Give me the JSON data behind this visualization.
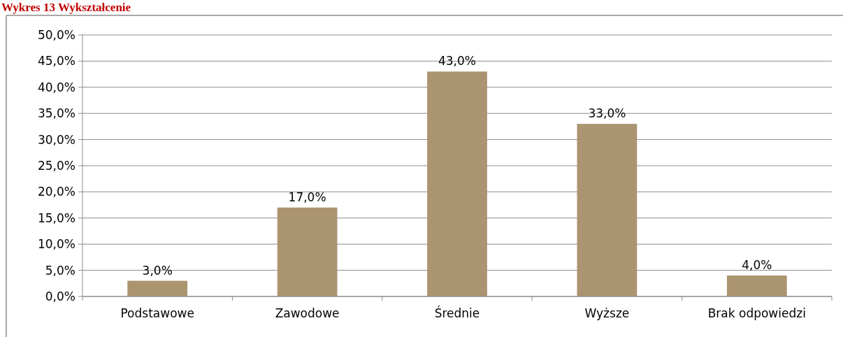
{
  "chart_data": {
    "type": "bar",
    "title": "Wykres 13 Wykształcenie",
    "categories": [
      "Podstawowe",
      "Zawodowe",
      "Średnie",
      "Wyższe",
      "Brak odpowiedzi"
    ],
    "values": [
      3.0,
      17.0,
      43.0,
      33.0,
      4.0
    ],
    "color": "#ab9470",
    "ylim": [
      0,
      50
    ],
    "yticks": [
      {
        "value": 0,
        "label": "0,0%"
      },
      {
        "value": 5,
        "label": "5,0%"
      },
      {
        "value": 10,
        "label": "10,0%"
      },
      {
        "value": 15,
        "label": "15,0%"
      },
      {
        "value": 20,
        "label": "20,0%"
      },
      {
        "value": 25,
        "label": "25,0%"
      },
      {
        "value": 30,
        "label": "30,0%"
      },
      {
        "value": 35,
        "label": "35,0%"
      },
      {
        "value": 40,
        "label": "40,0%"
      },
      {
        "value": 45,
        "label": "45,0%"
      },
      {
        "value": 50,
        "label": "50,0%"
      }
    ],
    "value_labels": [
      "3,0%",
      "17,0%",
      "43,0%",
      "33,0%",
      "4,0%"
    ],
    "grid": "y"
  }
}
